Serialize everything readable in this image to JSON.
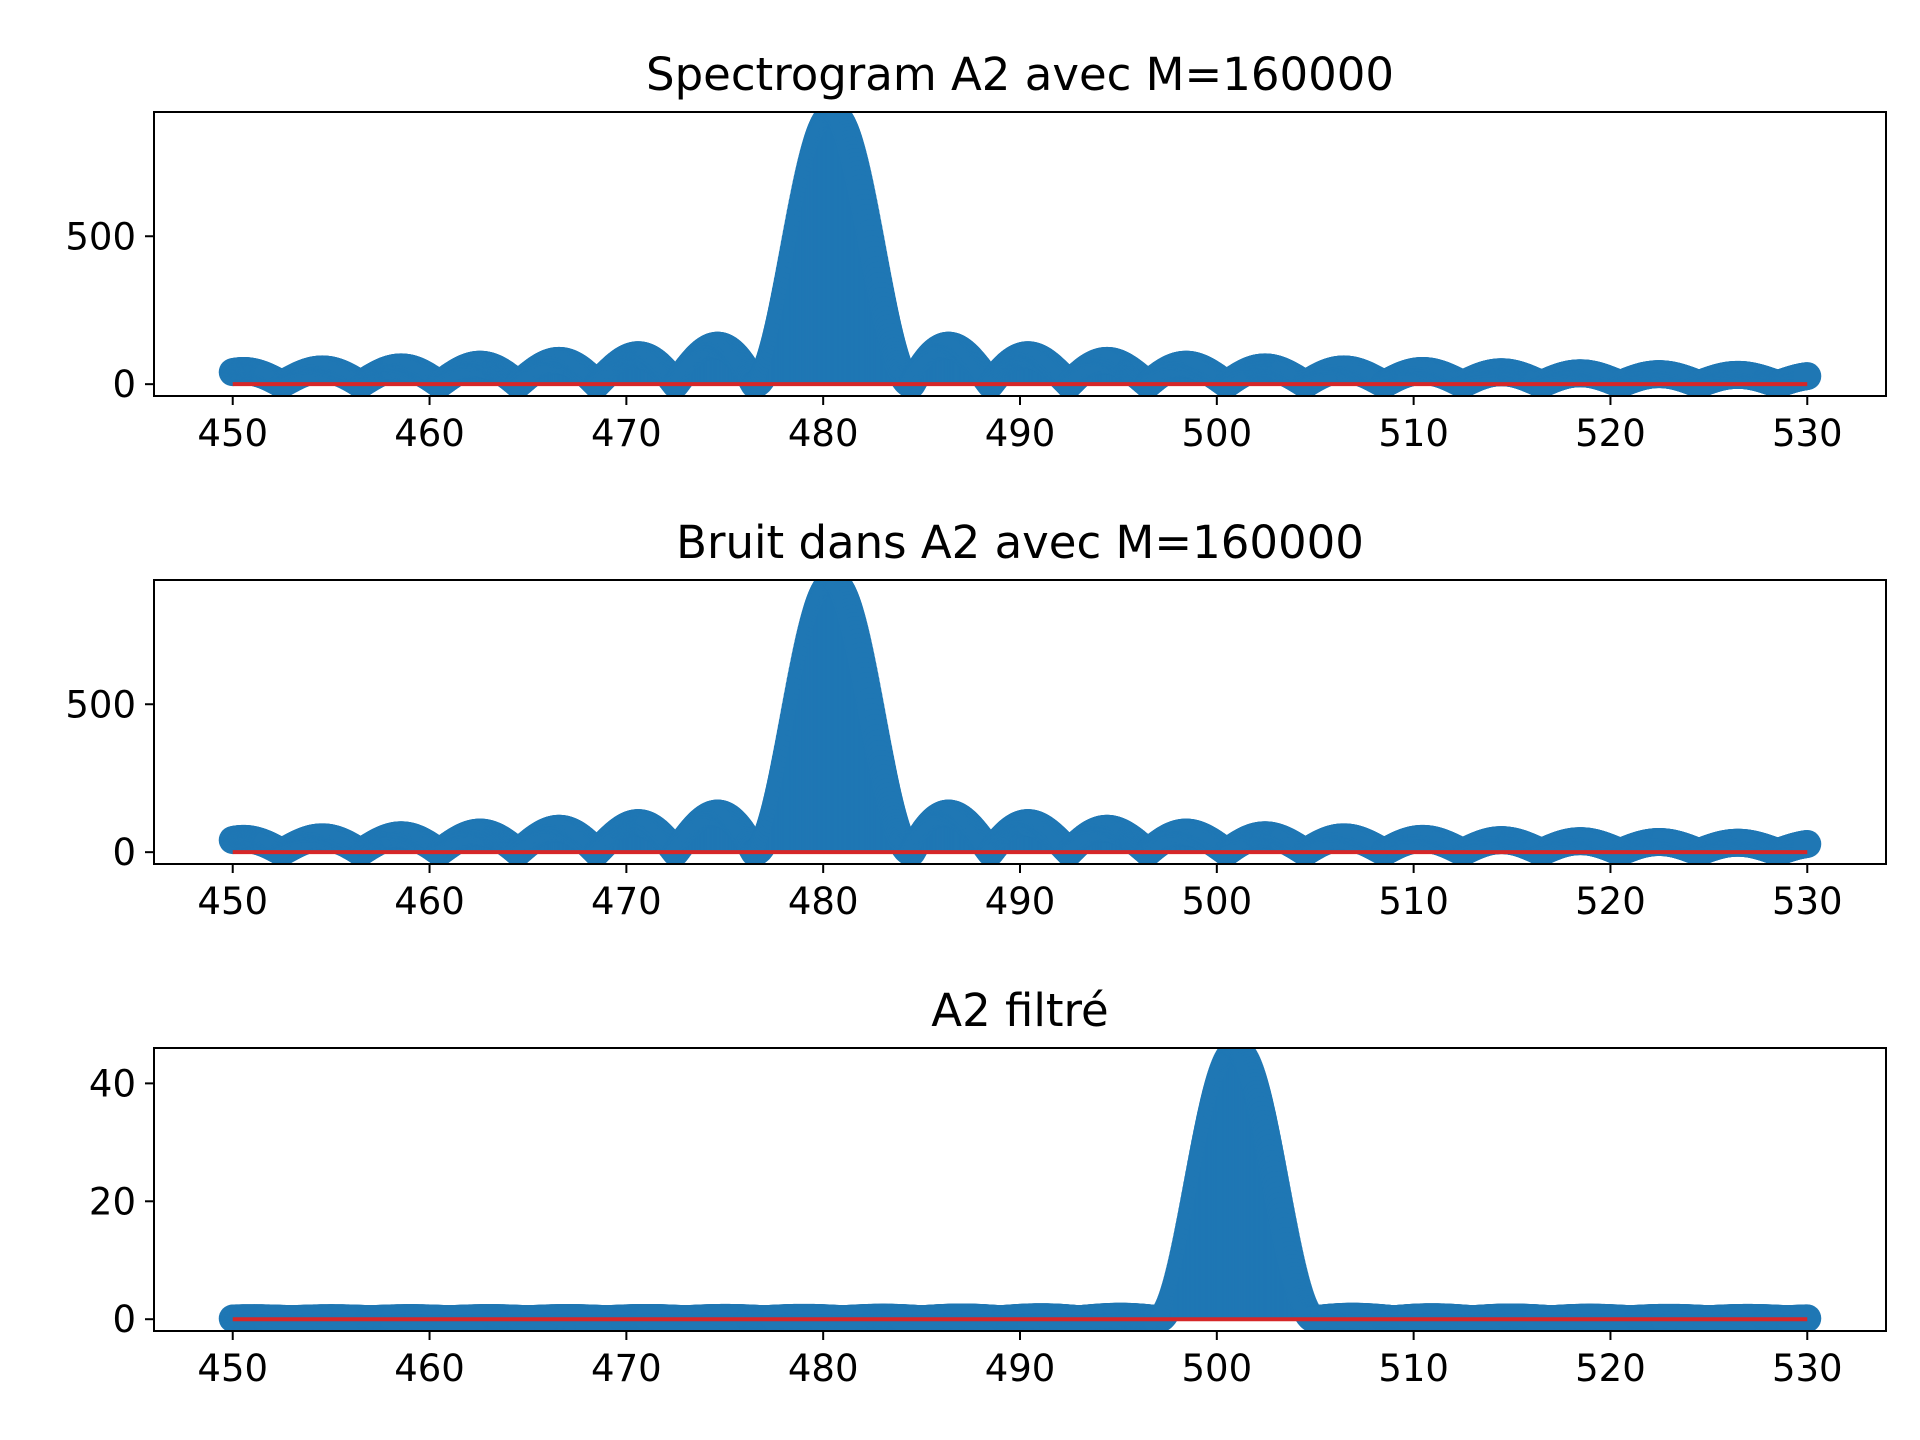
{
  "colors": {
    "stem_markers": "#1f77b4",
    "baseline": "#d62728",
    "axes": "#000000",
    "background": "#ffffff"
  },
  "chart_data": [
    {
      "type": "stem",
      "title": "Spectrogram A2 avec M=160000",
      "xlabel": "",
      "ylabel": "",
      "xlim": [
        446,
        534
      ],
      "ylim": [
        -40,
        920
      ],
      "xticks": [
        450,
        460,
        470,
        480,
        490,
        500,
        510,
        520,
        530
      ],
      "yticks": [
        0,
        500
      ],
      "peak": {
        "center": 480.5,
        "height": 910,
        "half_width": 4.0
      },
      "sidelobe_envelope": {
        "base": 10,
        "scale": 1.0
      },
      "baseline": 0,
      "x_range": [
        450,
        530
      ],
      "grid": false
    },
    {
      "type": "stem",
      "title": "Bruit dans A2 avec M=160000",
      "xlabel": "",
      "ylabel": "",
      "xlim": [
        446,
        534
      ],
      "ylim": [
        -40,
        920
      ],
      "xticks": [
        450,
        460,
        470,
        480,
        490,
        500,
        510,
        520,
        530
      ],
      "yticks": [
        0,
        500
      ],
      "peak": {
        "center": 480.5,
        "height": 910,
        "half_width": 4.0
      },
      "sidelobe_envelope": {
        "base": 12,
        "scale": 1.0
      },
      "baseline": 0,
      "x_range": [
        450,
        530
      ],
      "grid": false
    },
    {
      "type": "stem",
      "title": "A2 filtré",
      "xlabel": "",
      "ylabel": "",
      "xlim": [
        446,
        534
      ],
      "ylim": [
        -2,
        46
      ],
      "xticks": [
        450,
        460,
        470,
        480,
        490,
        500,
        510,
        520,
        530
      ],
      "yticks": [
        0,
        20,
        40
      ],
      "peak": {
        "center": 501,
        "height": 45.5,
        "half_width": 4.0
      },
      "sidelobe_envelope": {
        "base": 0.5,
        "scale": 0.05
      },
      "baseline": 0,
      "x_range": [
        450,
        530
      ],
      "grid": false
    }
  ]
}
